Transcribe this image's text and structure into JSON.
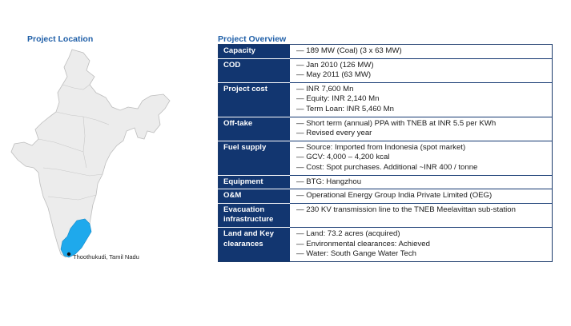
{
  "location": {
    "title": "Project Location",
    "marker_label": "Thoothukudi, Tamil Nadu",
    "colors": {
      "country": "#ececec",
      "border": "#bdbdbd",
      "highlight": "#1ea9ec"
    }
  },
  "overview": {
    "title": "Project Overview",
    "rows": [
      {
        "label": "Capacity",
        "values": [
          "— 189 MW (Coal) (3 x 63 MW)"
        ]
      },
      {
        "label": "COD",
        "values": [
          "— Jan 2010 (126 MW)",
          "— May 2011 (63 MW)"
        ]
      },
      {
        "label": "Project cost",
        "values": [
          "— INR 7,600 Mn",
          "— Equity: INR 2,140 Mn",
          "— Term Loan: INR 5,460 Mn"
        ]
      },
      {
        "label": "Off-take",
        "values": [
          "— Short term (annual) PPA with TNEB at INR 5.5 per KWh",
          "— Revised every year"
        ]
      },
      {
        "label": "Fuel supply",
        "values": [
          "— Source: Imported from Indonesia (spot market)",
          "— GCV: 4,000 – 4,200 kcal",
          "— Cost: Spot purchases. Additional ~INR 400 / tonne"
        ]
      },
      {
        "label": "Equipment",
        "values": [
          "— BTG: Hangzhou"
        ]
      },
      {
        "label": "O&M",
        "values": [
          "— Operational Energy Group India Private Limited (OEG)"
        ]
      },
      {
        "label": "Evacuation infrastructure",
        "values": [
          "— 230 KV transmission line to the TNEB Meelavittan sub-station"
        ]
      },
      {
        "label": "Land and Key clearances",
        "values": [
          "— Land: 73.2 acres (acquired)",
          "— Environmental clearances: Achieved",
          "— Water: South Gange Water Tech"
        ]
      }
    ]
  }
}
